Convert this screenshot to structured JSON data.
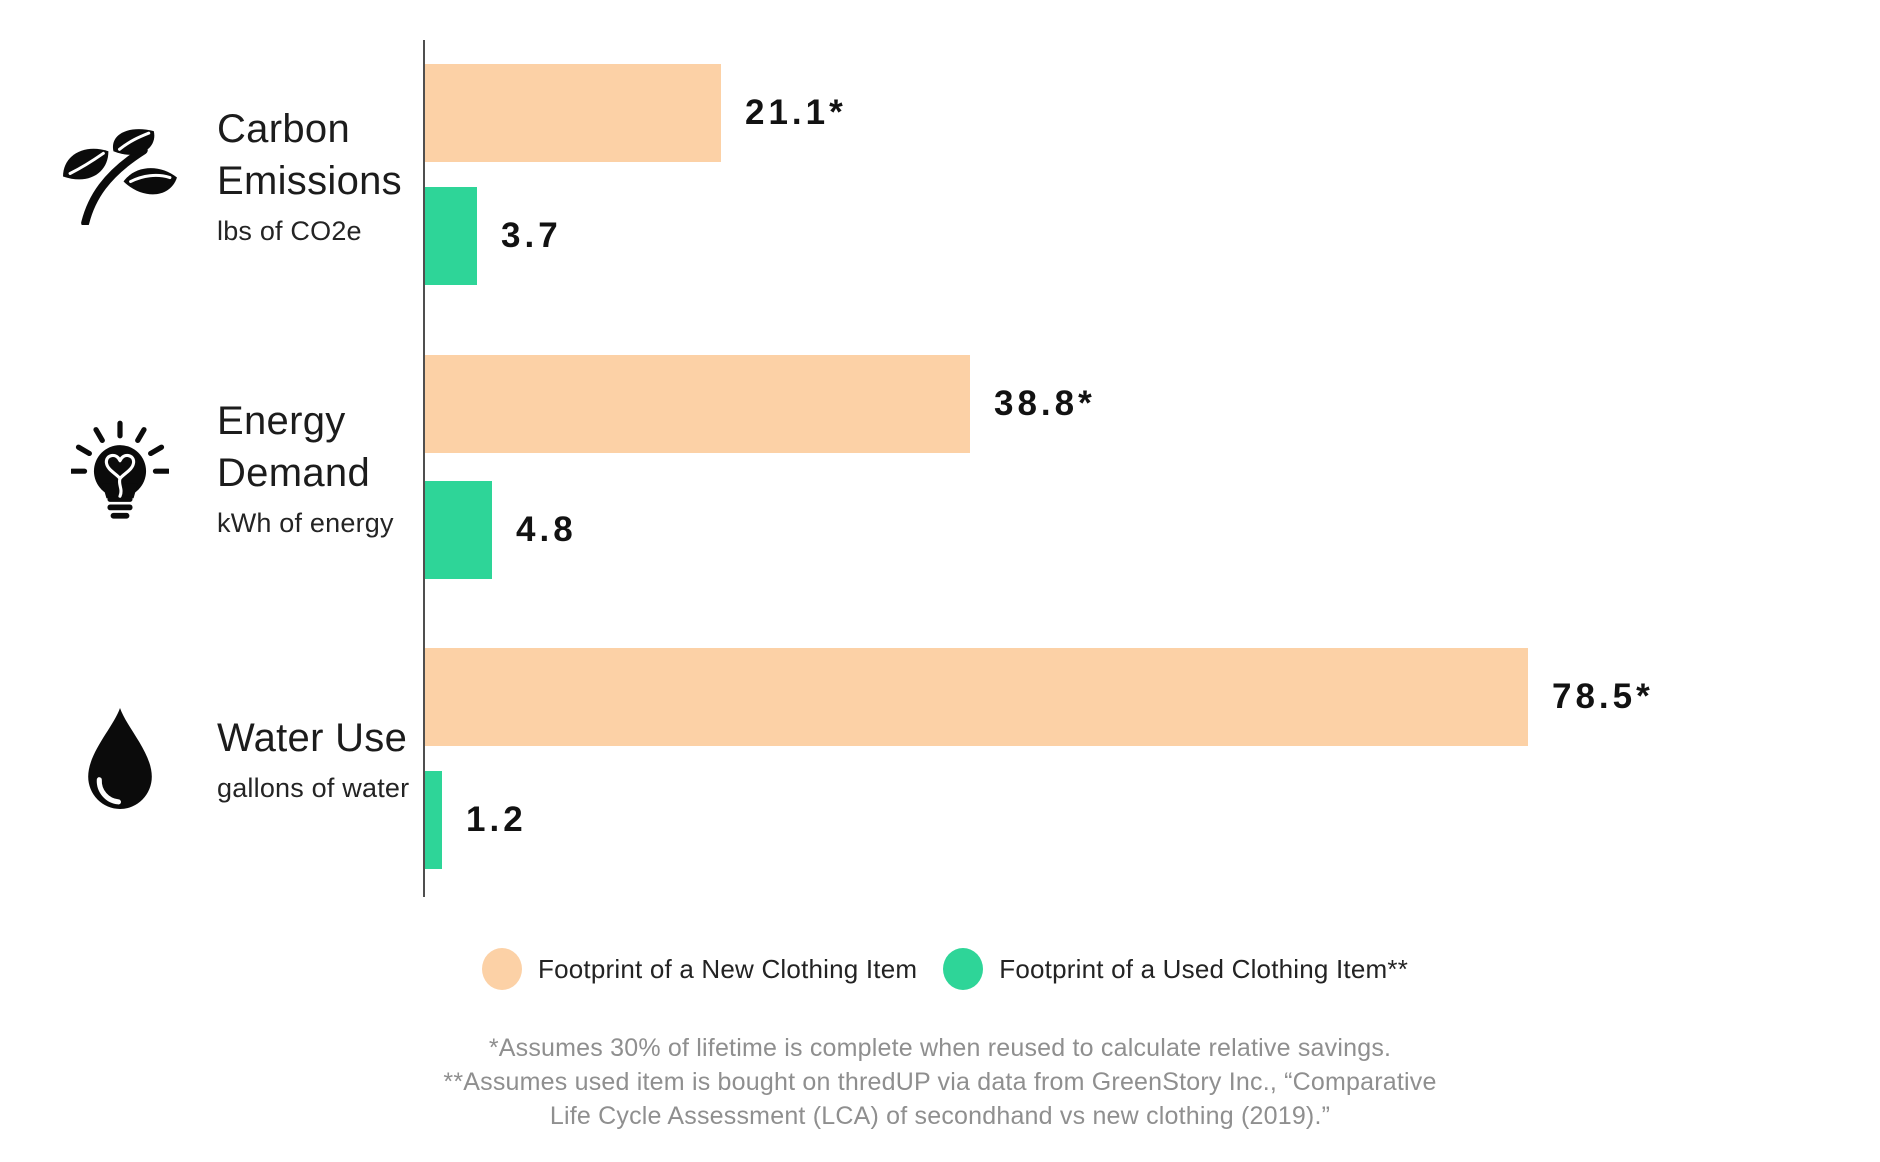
{
  "chart_data": {
    "type": "bar",
    "orientation": "horizontal",
    "categories": [
      "Carbon Emissions",
      "Energy Demand",
      "Water Use"
    ],
    "category_title_lines": [
      [
        "Carbon",
        "Emissions"
      ],
      [
        "Energy",
        "Demand"
      ],
      [
        "Water Use"
      ]
    ],
    "category_subtitles": [
      "lbs of CO2e",
      "kWh of energy",
      "gallons of water"
    ],
    "category_icons": [
      "plant-icon",
      "lightbulb-icon",
      "water-drop-icon"
    ],
    "series": [
      {
        "name": "Footprint of a New Clothing Item",
        "color": "#fcd1a6",
        "values": [
          21.1,
          38.8,
          78.5
        ],
        "value_labels": [
          "21.1*",
          "38.8*",
          "78.5*"
        ]
      },
      {
        "name": "Footprint of a Used Clothing Item**",
        "color": "#2ed598",
        "values": [
          3.7,
          4.8,
          1.2
        ],
        "value_labels": [
          "3.7",
          "4.8",
          "1.2"
        ]
      }
    ],
    "value_axis_range": [
      0,
      80
    ],
    "grid": false,
    "legend_position": "bottom",
    "title": "",
    "xlabel": "",
    "ylabel": ""
  },
  "legend": {
    "items": [
      {
        "label": "Footprint of a New Clothing Item",
        "color": "#fcd1a6"
      },
      {
        "label": "Footprint of a Used Clothing Item**",
        "color": "#2ed598"
      }
    ]
  },
  "footnotes": {
    "lines": [
      "*Assumes 30% of lifetime is complete when reused to calculate relative savings.",
      "**Assumes used item is bought on thredUP via data from GreenStory Inc., “Comparative",
      "Life Cycle Assessment (LCA) of secondhand vs new clothing (2019).”"
    ]
  }
}
